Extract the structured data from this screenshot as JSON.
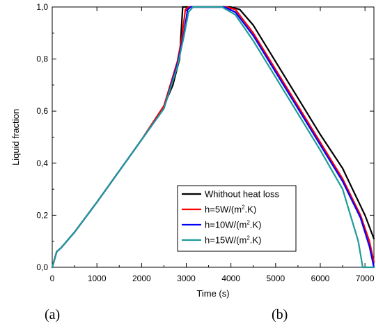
{
  "chart_data": {
    "type": "line",
    "title": "",
    "xlabel": "Time (s)",
    "ylabel": "Liquid fraction",
    "xlim": [
      0,
      7200
    ],
    "ylim": [
      0,
      1
    ],
    "x_ticks": [
      0,
      1000,
      2000,
      3000,
      4000,
      5000,
      6000,
      7000
    ],
    "x_tick_labels": [
      "0",
      "1000",
      "2000",
      "3000",
      "4000",
      "5000",
      "6000",
      "7000"
    ],
    "y_ticks": [
      0,
      0.2,
      0.4,
      0.6,
      0.8,
      1.0
    ],
    "y_tick_labels": [
      "0,0",
      "0,2",
      "0,4",
      "0,6",
      "0,8",
      "1,0"
    ],
    "grid": false,
    "legend_position": "bottom-right",
    "series": [
      {
        "name": "Whithout heat loss",
        "color": "#000000",
        "legend_text": "Whithout heat loss",
        "legend_sup": "",
        "legend_tail": "",
        "points": [
          [
            0,
            0.0
          ],
          [
            100,
            0.06
          ],
          [
            200,
            0.075
          ],
          [
            300,
            0.095
          ],
          [
            500,
            0.135
          ],
          [
            1000,
            0.25
          ],
          [
            1500,
            0.37
          ],
          [
            2000,
            0.49
          ],
          [
            2500,
            0.62
          ],
          [
            2700,
            0.7
          ],
          [
            2850,
            0.8
          ],
          [
            2920,
            1.0
          ],
          [
            3000,
            1.0
          ],
          [
            3500,
            1.0
          ],
          [
            4000,
            1.0
          ],
          [
            4200,
            0.99
          ],
          [
            4500,
            0.93
          ],
          [
            5000,
            0.79
          ],
          [
            5500,
            0.65
          ],
          [
            6000,
            0.51
          ],
          [
            6500,
            0.38
          ],
          [
            7000,
            0.2
          ],
          [
            7200,
            0.11
          ]
        ]
      },
      {
        "name": "h=5W/(m2.K)",
        "color": "#ff0000",
        "legend_text": "h=5W/(m",
        "legend_sup": "2",
        "legend_tail": ".K)",
        "points": [
          [
            0,
            0.0
          ],
          [
            100,
            0.06
          ],
          [
            200,
            0.075
          ],
          [
            300,
            0.095
          ],
          [
            500,
            0.135
          ],
          [
            1000,
            0.25
          ],
          [
            1500,
            0.37
          ],
          [
            2000,
            0.49
          ],
          [
            2500,
            0.62
          ],
          [
            2800,
            0.79
          ],
          [
            2900,
            0.88
          ],
          [
            2980,
            0.99
          ],
          [
            3050,
            1.0
          ],
          [
            3500,
            1.0
          ],
          [
            3900,
            1.0
          ],
          [
            4100,
            0.99
          ],
          [
            4500,
            0.9
          ],
          [
            5000,
            0.76
          ],
          [
            5500,
            0.62
          ],
          [
            6000,
            0.48
          ],
          [
            6500,
            0.34
          ],
          [
            6900,
            0.2
          ],
          [
            7100,
            0.1
          ],
          [
            7200,
            0.02
          ]
        ]
      },
      {
        "name": "h=10W/(m2.K)",
        "color": "#0000ff",
        "legend_text": "h=10W/(m",
        "legend_sup": "2",
        "legend_tail": ".K)",
        "points": [
          [
            0,
            0.0
          ],
          [
            100,
            0.06
          ],
          [
            200,
            0.075
          ],
          [
            300,
            0.095
          ],
          [
            500,
            0.135
          ],
          [
            1000,
            0.25
          ],
          [
            1500,
            0.37
          ],
          [
            2000,
            0.49
          ],
          [
            2500,
            0.61
          ],
          [
            2800,
            0.78
          ],
          [
            2950,
            0.9
          ],
          [
            3030,
            0.99
          ],
          [
            3100,
            1.0
          ],
          [
            3500,
            1.0
          ],
          [
            3850,
            1.0
          ],
          [
            4100,
            0.98
          ],
          [
            4500,
            0.89
          ],
          [
            5000,
            0.75
          ],
          [
            5500,
            0.61
          ],
          [
            6000,
            0.47
          ],
          [
            6500,
            0.33
          ],
          [
            6900,
            0.19
          ],
          [
            7100,
            0.08
          ],
          [
            7200,
            0.0
          ]
        ]
      },
      {
        "name": "h=15W/(m2.K)",
        "color": "#1f9a9a",
        "legend_text": "h=15W/(m",
        "legend_sup": "2",
        "legend_tail": ".K)",
        "points": [
          [
            0,
            0.0
          ],
          [
            100,
            0.06
          ],
          [
            200,
            0.075
          ],
          [
            300,
            0.095
          ],
          [
            500,
            0.135
          ],
          [
            1000,
            0.25
          ],
          [
            1500,
            0.37
          ],
          [
            2000,
            0.49
          ],
          [
            2500,
            0.61
          ],
          [
            2800,
            0.77
          ],
          [
            2950,
            0.89
          ],
          [
            3050,
            0.98
          ],
          [
            3150,
            1.0
          ],
          [
            3500,
            1.0
          ],
          [
            3800,
            1.0
          ],
          [
            4100,
            0.97
          ],
          [
            4500,
            0.87
          ],
          [
            5000,
            0.73
          ],
          [
            5500,
            0.59
          ],
          [
            6000,
            0.45
          ],
          [
            6500,
            0.3
          ],
          [
            6850,
            0.1
          ],
          [
            6950,
            0.0
          ],
          [
            7200,
            0.0
          ]
        ]
      }
    ]
  },
  "panel_labels": {
    "a": "(a)",
    "b": "(b)"
  }
}
